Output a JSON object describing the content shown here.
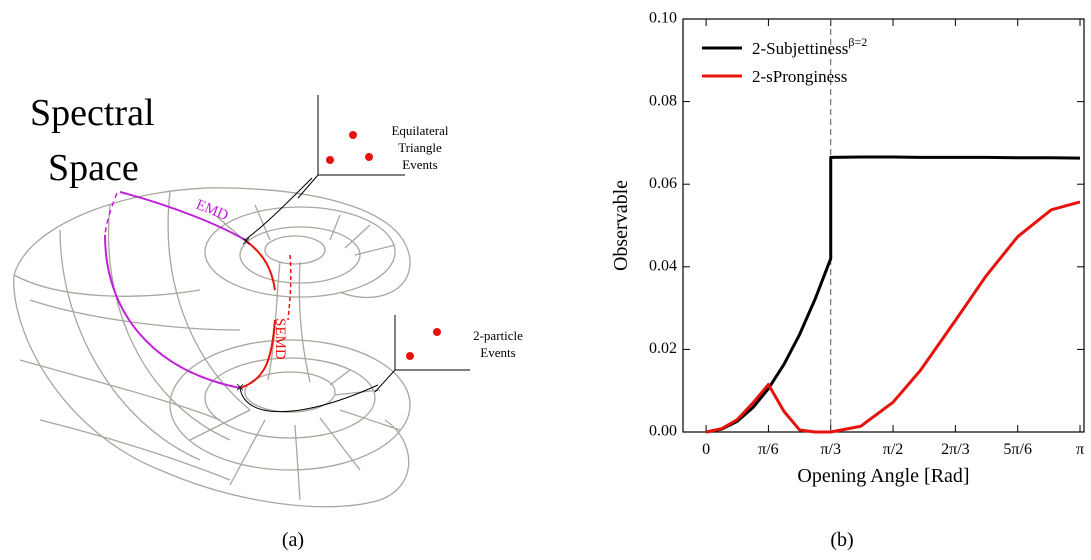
{
  "diagram": {
    "title_lines": [
      "Spectral",
      "Space"
    ],
    "path_labels": [
      "EMD",
      "SEMD"
    ],
    "event_labels": [
      [
        "Equilateral",
        "Triangle",
        "Events"
      ],
      [
        "2-particle",
        "Events"
      ]
    ]
  },
  "chart_data": {
    "type": "line",
    "xlabel": "Opening Angle [Rad]",
    "ylabel": "Observable",
    "x": [
      0,
      0.1309,
      0.2618,
      0.3927,
      0.5236,
      0.6545,
      0.7854,
      0.9163,
      1.0472,
      1.0472,
      1.3,
      1.5708,
      1.8,
      2.0944,
      2.35,
      2.618,
      2.9,
      3.1416
    ],
    "series": [
      {
        "name": "2-Subjettiness",
        "name_superscript": "β=2",
        "color": "#000000",
        "values": [
          0,
          0.0007,
          0.0026,
          0.0059,
          0.0105,
          0.0164,
          0.0236,
          0.0322,
          0.042,
          0.0665,
          0.0666,
          0.0666,
          0.0665,
          0.0665,
          0.0665,
          0.0664,
          0.0664,
          0.0663
        ]
      },
      {
        "name": "2-sPronginess",
        "color": "#e8120c",
        "values": [
          0,
          0.0008,
          0.003,
          0.007,
          0.0115,
          0.005,
          0.0005,
          0,
          0,
          0,
          0.0014,
          0.0072,
          0.0149,
          0.027,
          0.0377,
          0.0473,
          0.0538,
          0.0557
        ]
      }
    ],
    "vline": 1.0472,
    "xlim": [
      -0.194,
      3.175
    ],
    "xticks": [
      0,
      {
        "value": 0.5236,
        "label": "π/6"
      },
      {
        "value": 1.0472,
        "label": "π/3"
      },
      {
        "value": 1.5708,
        "label": "π/2"
      },
      {
        "value": 2.0944,
        "label": "2π/3"
      },
      {
        "value": 2.618,
        "label": "5π/6"
      },
      {
        "value": 3.1416,
        "label": "π"
      }
    ],
    "ylim": [
      0,
      0.1
    ],
    "yticks": [
      {
        "value": 0,
        "label": "0.00"
      },
      {
        "value": 0.02,
        "label": "0.02"
      },
      {
        "value": 0.04,
        "label": "0.04"
      },
      {
        "value": 0.06,
        "label": "0.06"
      },
      {
        "value": 0.08,
        "label": "0.08"
      },
      {
        "value": 0.1,
        "label": "0.10"
      }
    ],
    "grid": false,
    "legend": "upper left"
  },
  "captions": [
    "(a)",
    "(b)"
  ]
}
